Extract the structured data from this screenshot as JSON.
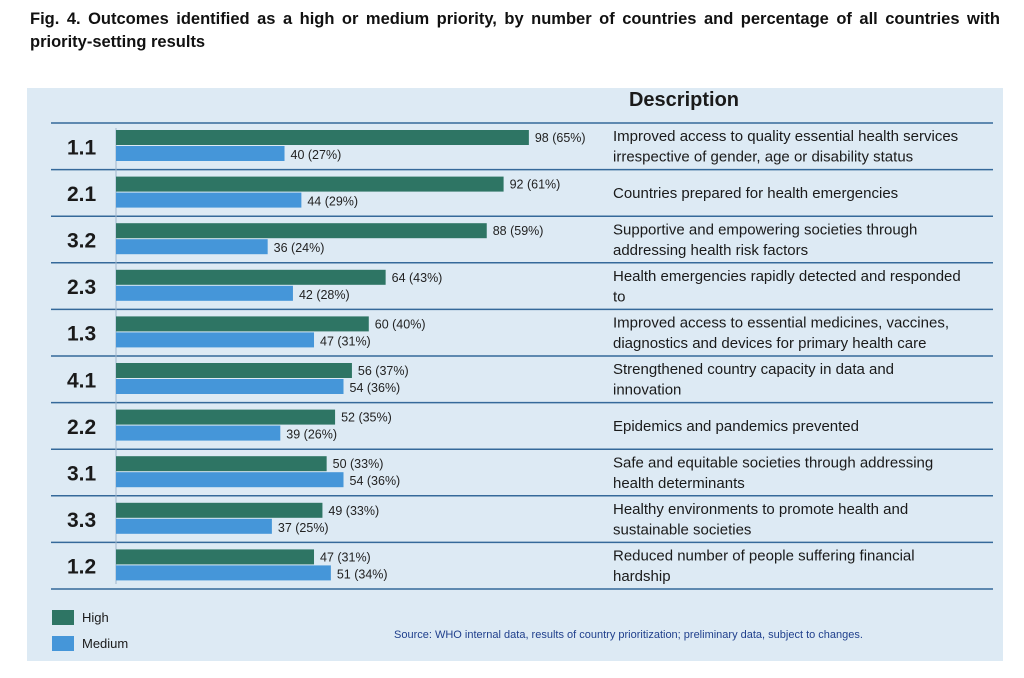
{
  "figure": {
    "title": "Fig. 4. Outcomes identified as a high or medium priority, by number of countries and percentage of all countries with priority-setting results",
    "source": "Source: WHO internal data, results of country prioritization; preliminary data, subject to changes."
  },
  "colors": {
    "high": "#2e7564",
    "medium": "#4596d9",
    "panel": "#ddeaf4",
    "rule": "#35699a"
  },
  "chart_data": {
    "type": "bar",
    "orientation": "horizontal",
    "description_header": "Description",
    "categories": [
      "1.1",
      "2.1",
      "3.2",
      "2.3",
      "1.3",
      "4.1",
      "2.2",
      "3.1",
      "3.3",
      "1.2"
    ],
    "descriptions": [
      [
        "Improved access to quality essential health services",
        "irrespective of gender, age or disability status"
      ],
      [
        "Countries prepared for health emergencies"
      ],
      [
        "Supportive and empowering societies through",
        "addressing health risk factors"
      ],
      [
        "Health emergencies rapidly detected and responded",
        "to"
      ],
      [
        "Improved access to essential medicines, vaccines,",
        "diagnostics and devices for primary health care"
      ],
      [
        "Strengthened country capacity in data and",
        "innovation"
      ],
      [
        "Epidemics and pandemics prevented"
      ],
      [
        "Safe and equitable societies through addressing",
        "health determinants"
      ],
      [
        "Healthy environments to promote health and",
        "sustainable societies"
      ],
      [
        "Reduced number of people suffering financial",
        "hardship"
      ]
    ],
    "series": [
      {
        "name": "High",
        "values": [
          98,
          92,
          88,
          64,
          60,
          56,
          52,
          50,
          49,
          47
        ],
        "labels": [
          "98 (65%)",
          "92 (61%)",
          "88 (59%)",
          "64 (43%)",
          "60 (40%)",
          "56 (37%)",
          "52 (35%)",
          "50 (33%)",
          "49 (33%)",
          "47 (31%)"
        ]
      },
      {
        "name": "Medium",
        "values": [
          40,
          44,
          36,
          42,
          47,
          54,
          39,
          54,
          37,
          51
        ],
        "labels": [
          "40 (27%)",
          "44 (29%)",
          "36 (24%)",
          "42 (28%)",
          "47 (31%)",
          "54 (36%)",
          "39 (26%)",
          "54 (36%)",
          "37 (25%)",
          "51 (34%)"
        ]
      }
    ],
    "legend": {
      "position": "bottom-left"
    },
    "grid": false
  }
}
